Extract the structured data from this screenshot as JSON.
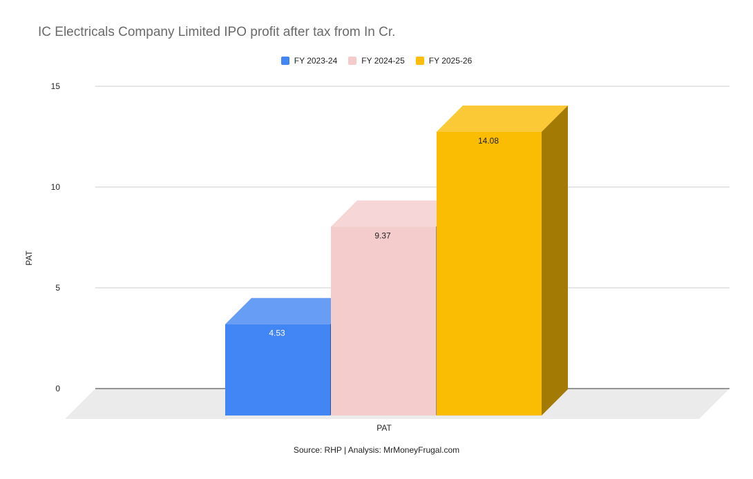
{
  "chart_data": {
    "type": "bar",
    "title": "IC Electricals Company Limited IPO profit after tax from In Cr.",
    "categories": [
      "PAT"
    ],
    "xlabel": "PAT",
    "ylabel": "PAT",
    "ylim": [
      0,
      15
    ],
    "yticks": [
      0,
      5,
      10,
      15
    ],
    "grid": true,
    "legend_position": "top",
    "series": [
      {
        "name": "FY 2023-24",
        "values": [
          4.53
        ],
        "color": "#4285f4"
      },
      {
        "name": "FY 2024-25",
        "values": [
          9.37
        ],
        "color": "#f4cccc"
      },
      {
        "name": "FY 2025-26",
        "values": [
          14.08
        ],
        "color": "#fbbc04"
      }
    ],
    "source": "Source: RHP | Analysis: MrMoneyFrugal.com"
  }
}
